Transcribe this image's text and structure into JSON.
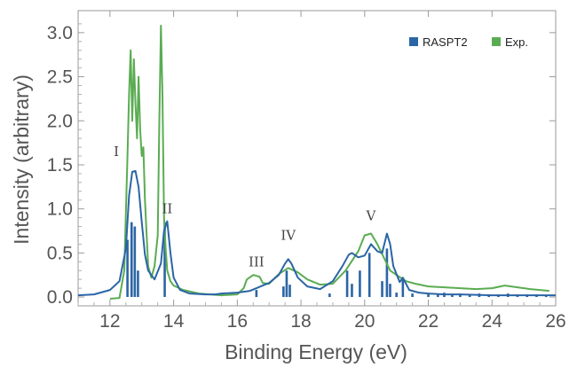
{
  "chart_data": {
    "type": "line",
    "title": "",
    "xlabel": "Binding Energy (eV)",
    "ylabel": "Intensity (arbitrary)",
    "xlim": [
      11,
      26
    ],
    "ylim": [
      -0.1,
      3.25
    ],
    "xticks": [
      "12",
      "14",
      "16",
      "18",
      "20",
      "22",
      "24",
      "26"
    ],
    "xtick_values": [
      12,
      14,
      16,
      18,
      20,
      22,
      24,
      26
    ],
    "yticks": [
      "0.0",
      "0.5",
      "1.0",
      "1.5",
      "2.0",
      "2.5",
      "3.0"
    ],
    "ytick_values": [
      0.0,
      0.5,
      1.0,
      1.5,
      2.0,
      2.5,
      3.0
    ],
    "grid": false,
    "legend_position": "top-right",
    "legend": [
      {
        "name": "RASPT2",
        "color": "#2b65a5"
      },
      {
        "name": "Exp.",
        "color": "#5aac52"
      }
    ],
    "annotations": [
      {
        "text": "I",
        "x": 12.2,
        "y": 1.6
      },
      {
        "text": "II",
        "x": 13.8,
        "y": 0.95
      },
      {
        "text": "III",
        "x": 16.6,
        "y": 0.35
      },
      {
        "text": "IV",
        "x": 17.6,
        "y": 0.65
      },
      {
        "text": "V",
        "x": 20.2,
        "y": 0.87
      }
    ],
    "series": [
      {
        "name": "RASPT2",
        "color": "#2b65a5",
        "kind": "line",
        "x": [
          11.0,
          11.5,
          12.0,
          12.3,
          12.5,
          12.6,
          12.7,
          12.8,
          12.9,
          13.0,
          13.1,
          13.2,
          13.4,
          13.6,
          13.7,
          13.8,
          13.9,
          14.0,
          14.2,
          14.5,
          15.0,
          15.3,
          15.5,
          16.0,
          16.4,
          16.6,
          16.8,
          17.0,
          17.3,
          17.5,
          17.6,
          17.7,
          17.9,
          18.2,
          18.6,
          19.0,
          19.3,
          19.5,
          19.6,
          19.8,
          20.0,
          20.2,
          20.4,
          20.55,
          20.7,
          20.8,
          20.9,
          21.1,
          21.2,
          21.4,
          21.7,
          22.0,
          22.5,
          23.0,
          24.0,
          25.0,
          26.0
        ],
        "y": [
          0.02,
          0.03,
          0.08,
          0.18,
          0.55,
          1.15,
          1.42,
          1.43,
          1.25,
          0.85,
          0.48,
          0.3,
          0.2,
          0.38,
          0.75,
          0.86,
          0.5,
          0.22,
          0.08,
          0.04,
          0.03,
          0.03,
          0.04,
          0.05,
          0.07,
          0.1,
          0.13,
          0.16,
          0.25,
          0.38,
          0.43,
          0.38,
          0.22,
          0.12,
          0.09,
          0.18,
          0.35,
          0.48,
          0.5,
          0.45,
          0.47,
          0.6,
          0.52,
          0.5,
          0.72,
          0.6,
          0.35,
          0.17,
          0.22,
          0.08,
          0.05,
          0.04,
          0.03,
          0.03,
          0.02,
          0.02,
          0.02
        ]
      },
      {
        "name": "Exp.",
        "color": "#5aac52",
        "kind": "line",
        "x": [
          12.0,
          12.3,
          12.45,
          12.55,
          12.6,
          12.65,
          12.7,
          12.75,
          12.8,
          12.85,
          12.9,
          12.95,
          13.0,
          13.05,
          13.1,
          13.2,
          13.3,
          13.4,
          13.5,
          13.55,
          13.6,
          13.65,
          13.7,
          13.75,
          13.8,
          13.9,
          14.0,
          14.3,
          14.8,
          15.5,
          16.0,
          16.2,
          16.3,
          16.5,
          16.7,
          16.8,
          17.0,
          17.3,
          17.6,
          17.9,
          18.2,
          18.6,
          19.0,
          19.4,
          19.8,
          20.0,
          20.2,
          20.4,
          20.6,
          20.8,
          21.0,
          21.3,
          21.6,
          22.0,
          22.5,
          23.0,
          23.5,
          24.0,
          24.4,
          24.8,
          25.2,
          25.8
        ],
        "y": [
          -0.02,
          -0.01,
          0.3,
          1.6,
          2.3,
          2.8,
          2.0,
          2.7,
          2.2,
          1.8,
          2.5,
          1.9,
          1.6,
          1.7,
          1.1,
          0.35,
          0.22,
          0.35,
          0.7,
          2.0,
          3.08,
          2.3,
          0.9,
          0.55,
          0.3,
          0.18,
          0.13,
          0.08,
          0.04,
          0.02,
          0.03,
          0.1,
          0.2,
          0.25,
          0.23,
          0.16,
          0.15,
          0.26,
          0.33,
          0.28,
          0.2,
          0.14,
          0.15,
          0.3,
          0.52,
          0.7,
          0.72,
          0.6,
          0.45,
          0.3,
          0.25,
          0.18,
          0.15,
          0.12,
          0.11,
          0.1,
          0.09,
          0.1,
          0.13,
          0.11,
          0.09,
          0.07
        ]
      },
      {
        "name": "RASPT2 sticks",
        "color": "#2b65a5",
        "kind": "stick",
        "x": [
          12.55,
          12.68,
          12.78,
          12.88,
          13.72,
          16.6,
          17.45,
          17.55,
          17.65,
          18.9,
          19.45,
          19.6,
          19.85,
          20.15,
          20.55,
          20.7,
          20.8,
          21.0,
          21.2,
          21.5,
          22.0,
          22.3,
          22.5,
          22.75,
          23.0,
          23.3,
          23.6,
          23.9,
          24.2,
          24.5,
          24.8,
          25.1,
          25.4,
          25.7
        ],
        "y": [
          0.65,
          0.85,
          0.8,
          0.3,
          0.85,
          0.08,
          0.12,
          0.3,
          0.14,
          0.04,
          0.3,
          0.15,
          0.3,
          0.5,
          0.18,
          0.55,
          0.15,
          0.05,
          0.2,
          0.04,
          0.04,
          0.03,
          0.05,
          0.03,
          0.04,
          0.03,
          0.04,
          0.03,
          0.03,
          0.04,
          0.03,
          0.03,
          0.03,
          0.02
        ]
      }
    ]
  }
}
